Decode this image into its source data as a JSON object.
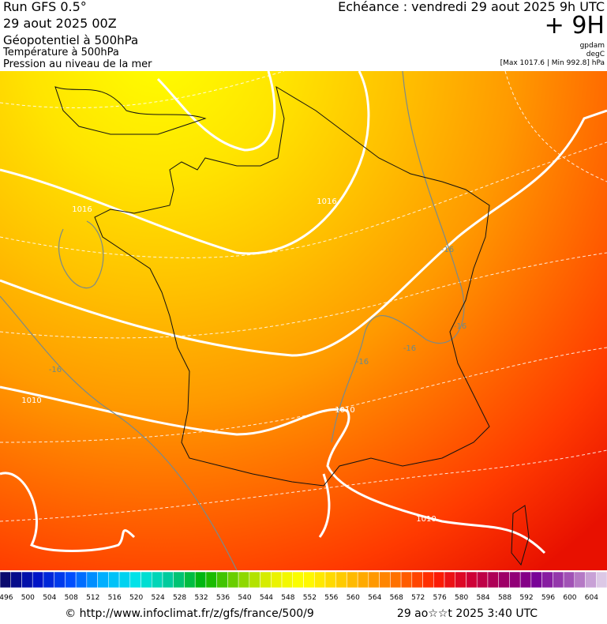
{
  "header": {
    "run": "Run GFS 0.5°",
    "run_date": "29 aout 2025 00Z",
    "field_main": "Géopotentiel à 500hPa",
    "field_2": "Température à 500hPa",
    "field_3": "Pression au niveau de la mer",
    "echeance": "Echéance : vendredi 29 aout 2025 9h UTC",
    "lead": "+ 9H",
    "unit_1": "gpdam",
    "unit_2": "degC",
    "pressure_range": "[Max 1017.6 | Min 992.8] hPa"
  },
  "map": {
    "contour_labels": [
      "1016",
      "1016",
      "1010",
      "1010",
      "1010",
      "-16",
      "-16",
      "-16",
      "-16",
      "-16"
    ]
  },
  "colorbar": {
    "labels": [
      "496",
      "500",
      "504",
      "508",
      "512",
      "516",
      "520",
      "524",
      "528",
      "532",
      "536",
      "540",
      "544",
      "548",
      "552",
      "556",
      "560",
      "564",
      "568",
      "572",
      "576",
      "580",
      "584",
      "588",
      "592",
      "596",
      "600",
      "604"
    ],
    "colors": [
      "#0a0a6e",
      "#0014c8",
      "#0050ff",
      "#00b4ff",
      "#00e6e6",
      "#00c896",
      "#00b400",
      "#78d200",
      "#e6f000",
      "#ffff00",
      "#ffd200",
      "#ffa000",
      "#ff6400",
      "#ff1e00",
      "#d20032",
      "#a00064",
      "#780096",
      "#a050b4",
      "#dcc8e6"
    ]
  },
  "footer": {
    "source": "© http://www.infoclimat.fr/z/gfs/france/500/9",
    "generated": "29 ao☆☆t 2025  3:40 UTC"
  }
}
